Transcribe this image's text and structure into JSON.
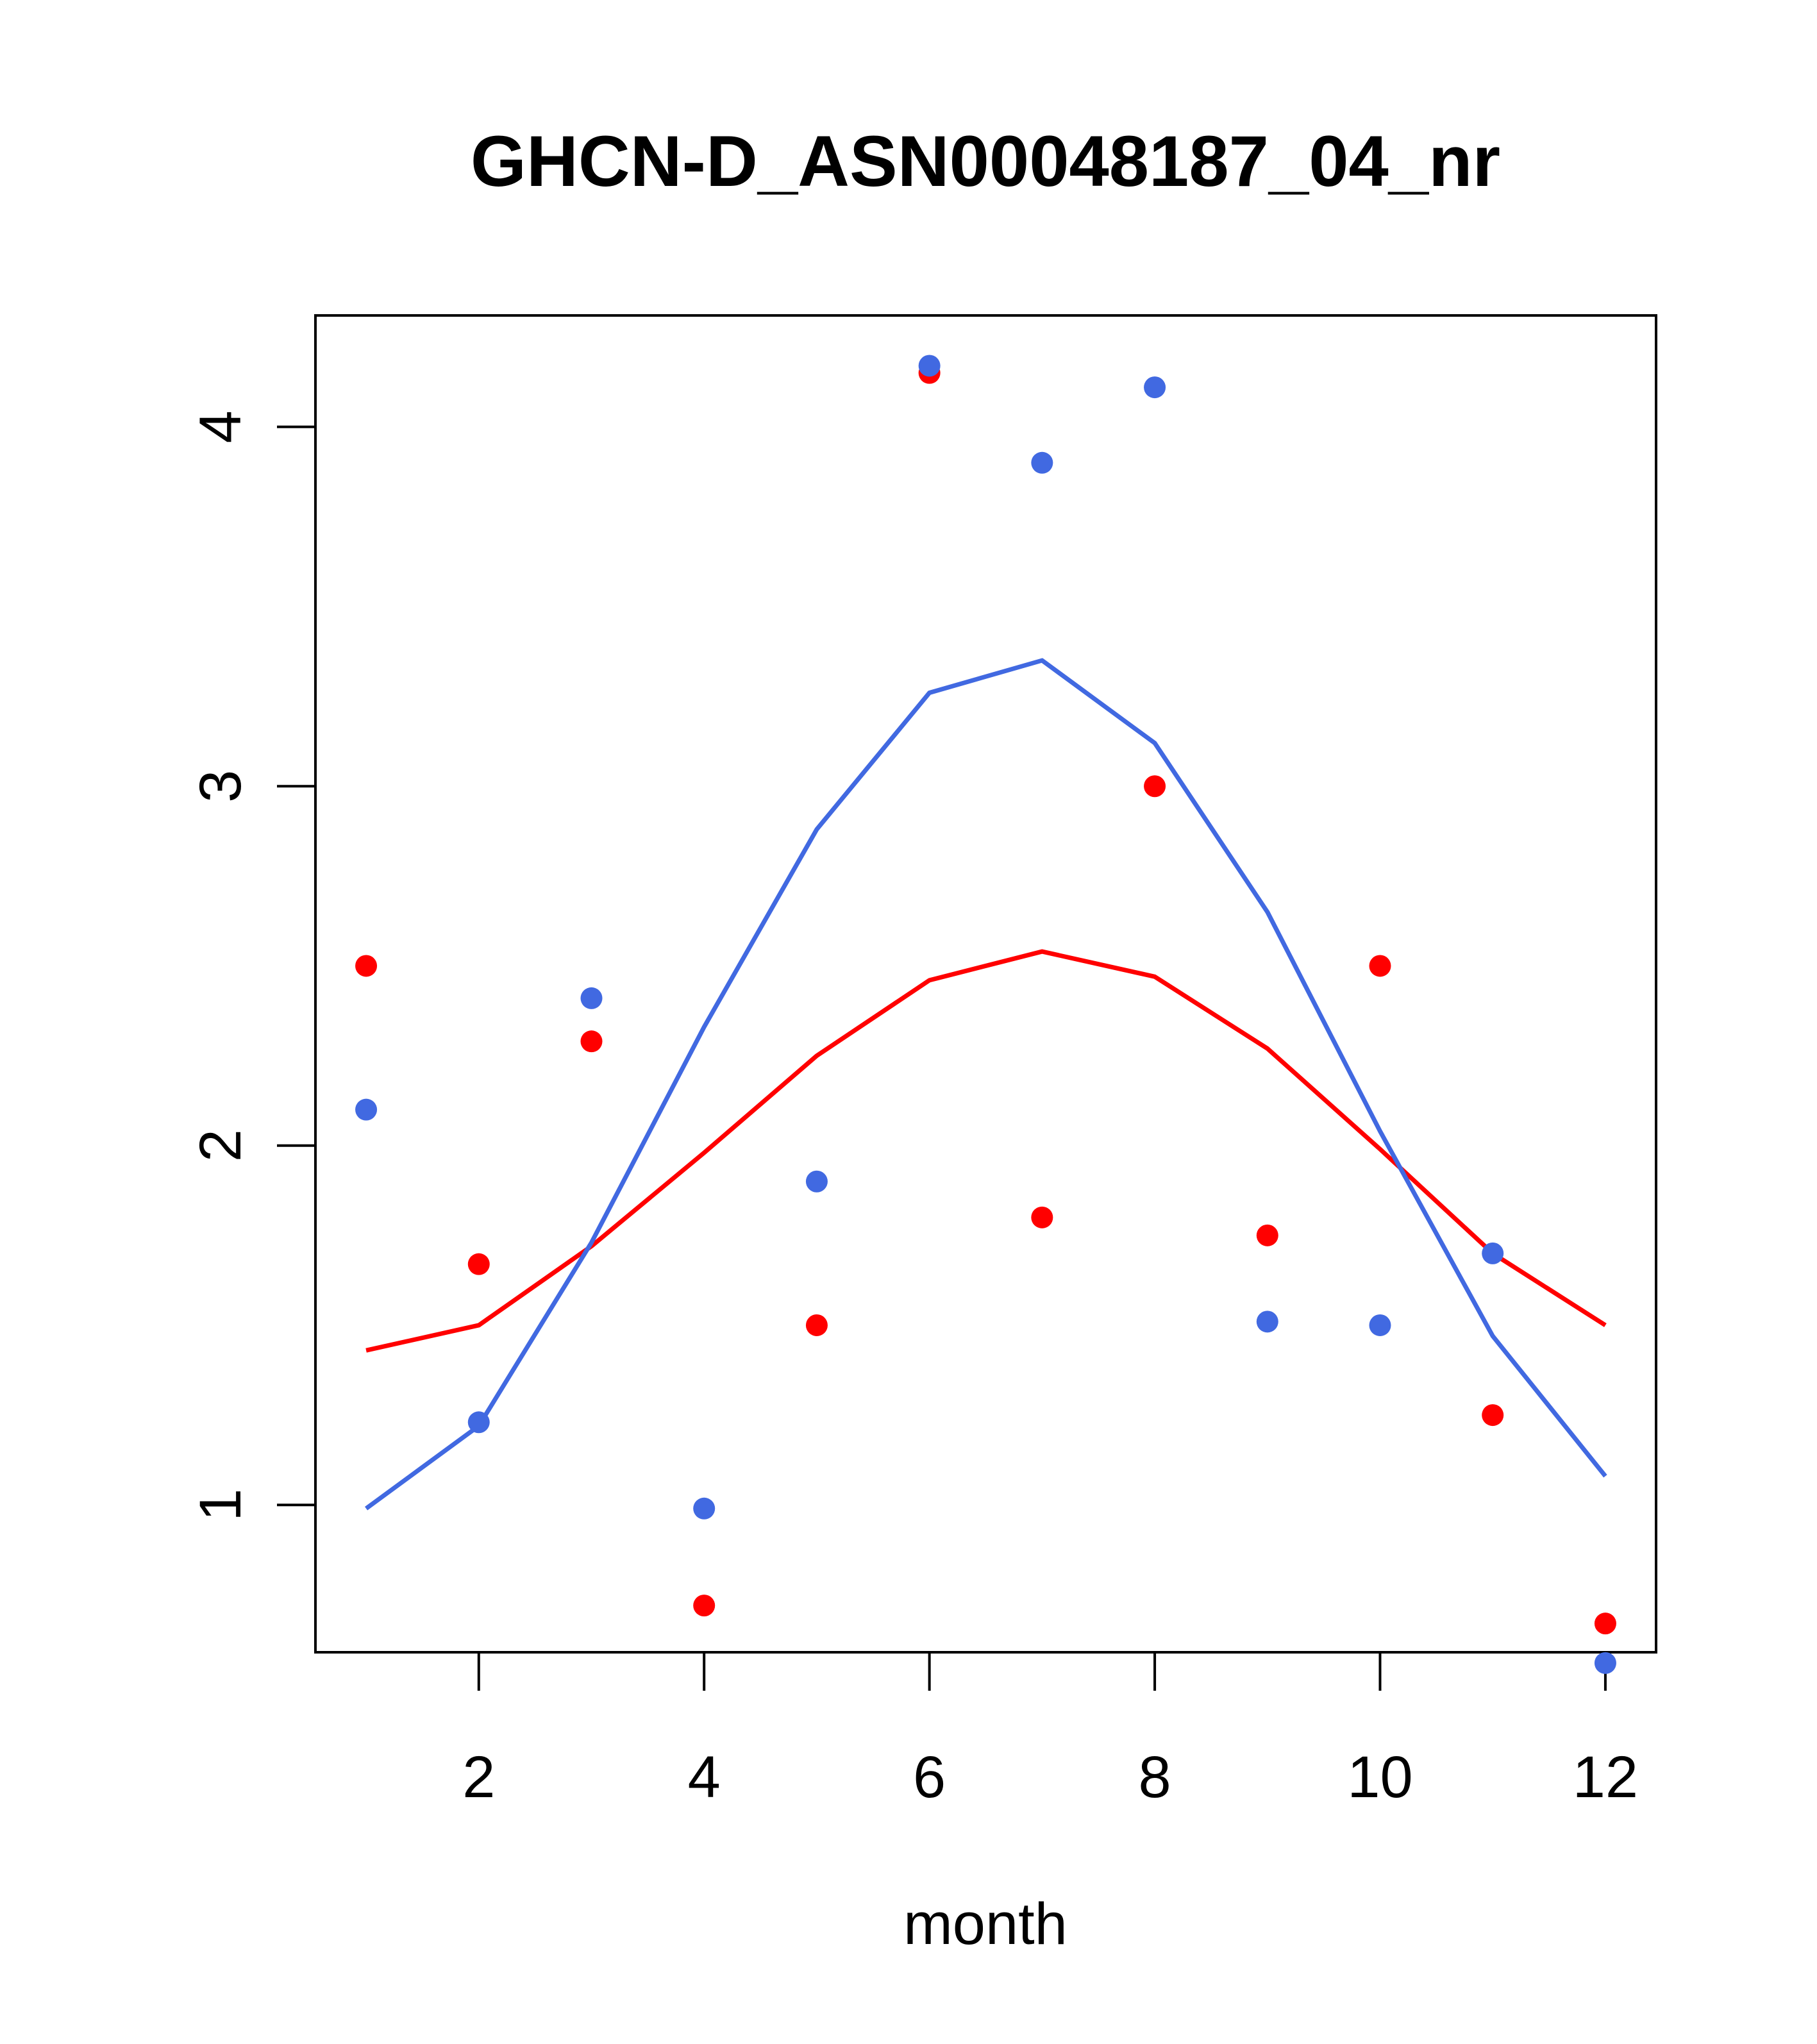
{
  "chart_data": {
    "type": "scatter",
    "title": "GHCN-D_ASN00048187_04_nr",
    "xlabel": "month",
    "ylabel": "",
    "xlim": [
      0.55,
      12.45
    ],
    "ylim": [
      0.59,
      4.31
    ],
    "xticks": [
      2,
      4,
      6,
      8,
      10,
      12
    ],
    "yticks": [
      1,
      2,
      3,
      4
    ],
    "x": [
      1,
      2,
      3,
      4,
      5,
      6,
      7,
      8,
      9,
      10,
      11,
      12
    ],
    "series": [
      {
        "name": "red points",
        "kind": "points",
        "color": "#ff0000",
        "values": [
          2.5,
          1.67,
          2.29,
          0.72,
          1.5,
          4.15,
          1.8,
          3.0,
          1.75,
          2.5,
          1.25,
          0.67
        ]
      },
      {
        "name": "blue points",
        "kind": "points",
        "color": "#4169e1",
        "values": [
          2.1,
          1.23,
          2.41,
          0.99,
          1.9,
          4.17,
          3.9,
          4.11,
          1.51,
          1.5,
          1.7,
          0.56
        ]
      },
      {
        "name": "red fit",
        "kind": "line",
        "color": "#ff0000",
        "values": [
          1.43,
          1.5,
          1.72,
          1.98,
          2.25,
          2.46,
          2.54,
          2.47,
          2.27,
          1.99,
          1.7,
          1.5
        ]
      },
      {
        "name": "blue fit",
        "kind": "line",
        "color": "#4169e1",
        "values": [
          0.99,
          1.22,
          1.73,
          2.33,
          2.88,
          3.26,
          3.35,
          3.12,
          2.65,
          2.04,
          1.47,
          1.08
        ]
      }
    ]
  }
}
